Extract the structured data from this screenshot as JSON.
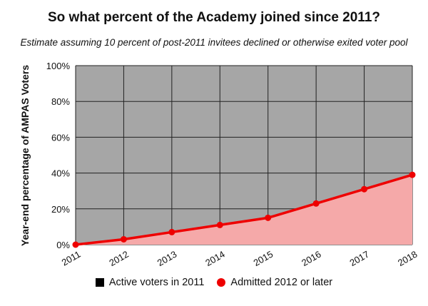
{
  "chart_data": {
    "type": "area",
    "title": "So what percent of the Academy joined since 2011?",
    "subtitle": "Estimate assuming 10 percent of post-2011 invitees declined or otherwise exited voter pool",
    "ylabel": "Year-end percentage of AMPAS Voters",
    "xlabel": "",
    "x": [
      "2011",
      "2012",
      "2013",
      "2014",
      "2015",
      "2016",
      "2017",
      "2018"
    ],
    "ylim": [
      0,
      100
    ],
    "yticks": [
      "0%",
      "20%",
      "40%",
      "60%",
      "80%",
      "100%"
    ],
    "grid": true,
    "legend_position": "bottom",
    "series": [
      {
        "name": "Active voters in 2011",
        "values": [
          100,
          97,
          93,
          89,
          85,
          77,
          69,
          61
        ],
        "color": "#a6a6a6",
        "legend_color": "#000000"
      },
      {
        "name": "Admitted 2012 or later",
        "values": [
          0,
          3,
          7,
          11,
          15,
          23,
          31,
          39
        ],
        "color": "#ee0000",
        "fill": "#f5a9a9"
      }
    ]
  }
}
